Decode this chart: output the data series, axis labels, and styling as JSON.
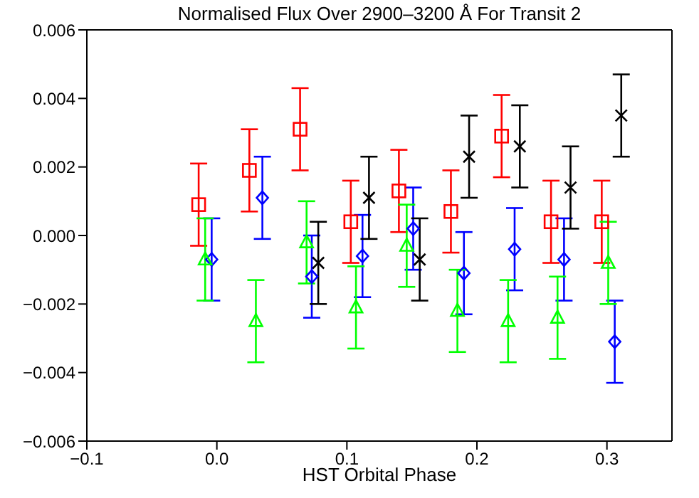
{
  "chart_data": {
    "type": "scatter",
    "title": "Normalised Flux Over 2900–3200 Å For Transit 2",
    "xlabel": "HST Orbital Phase",
    "xlim": [
      -0.1,
      0.35
    ],
    "xticks": [
      {
        "value": -0.1,
        "label": "−0.1"
      },
      {
        "value": 0,
        "label": "0.0"
      },
      {
        "value": 0.1,
        "label": "0.1"
      },
      {
        "value": 0.2,
        "label": "0.2"
      },
      {
        "value": 0.3,
        "label": "0.3"
      }
    ],
    "ylim": [
      -0.006,
      0.006
    ],
    "yticks": [
      {
        "value": -0.006,
        "label": "−0.006"
      },
      {
        "value": -0.004,
        "label": "−0.004"
      },
      {
        "value": -0.002,
        "label": "−0.002"
      },
      {
        "value": 0,
        "label": "0.000"
      },
      {
        "value": 0.002,
        "label": "0.002"
      },
      {
        "value": 0.004,
        "label": "0.004"
      },
      {
        "value": 0.006,
        "label": "0.006"
      }
    ],
    "series": [
      {
        "color": "#ff0000",
        "marker": "square",
        "x": [
          -0.014,
          0.025,
          0.064,
          0.103,
          0.14,
          0.18,
          0.219,
          0.257,
          0.296
        ],
        "values": [
          0.0009,
          0.0019,
          0.0031,
          0.0004,
          0.0013,
          0.0007,
          0.0029,
          0.0004,
          0.0004
        ],
        "errors": [
          0.0012,
          0.0012,
          0.0012,
          0.0012,
          0.0012,
          0.0012,
          0.0012,
          0.0012,
          0.0012
        ]
      },
      {
        "color": "#0000ff",
        "marker": "diamond",
        "x": [
          -0.004,
          0.035,
          0.073,
          0.112,
          0.151,
          0.19,
          0.229,
          0.267,
          0.306
        ],
        "values": [
          -0.0007,
          0.0011,
          -0.0012,
          -0.0006,
          0.0002,
          -0.0011,
          -0.0004,
          -0.0007,
          -0.0031
        ],
        "errors": [
          0.0012,
          0.0012,
          0.0012,
          0.0012,
          0.0012,
          0.0012,
          0.0012,
          0.0012,
          0.0012
        ]
      },
      {
        "color": "#00ff00",
        "marker": "triangle",
        "x": [
          -0.009,
          0.03,
          0.069,
          0.107,
          0.146,
          0.185,
          0.224,
          0.262,
          0.301
        ],
        "values": [
          -0.0007,
          -0.0025,
          -0.0002,
          -0.0021,
          -0.0003,
          -0.0022,
          -0.0025,
          -0.0024,
          -0.0008
        ],
        "errors": [
          0.0012,
          0.0012,
          0.0012,
          0.0012,
          0.0012,
          0.0012,
          0.0012,
          0.0012,
          0.0012
        ]
      },
      {
        "color": "#000000",
        "marker": "cross",
        "x": [
          0.078,
          0.117,
          0.156,
          0.194,
          0.233,
          0.272,
          0.311
        ],
        "values": [
          -0.0008,
          0.0011,
          -0.0007,
          0.0023,
          0.0026,
          0.0014,
          0.0035
        ],
        "errors": [
          0.0012,
          0.0012,
          0.0012,
          0.0012,
          0.0012,
          0.0012,
          0.0012
        ]
      }
    ]
  }
}
